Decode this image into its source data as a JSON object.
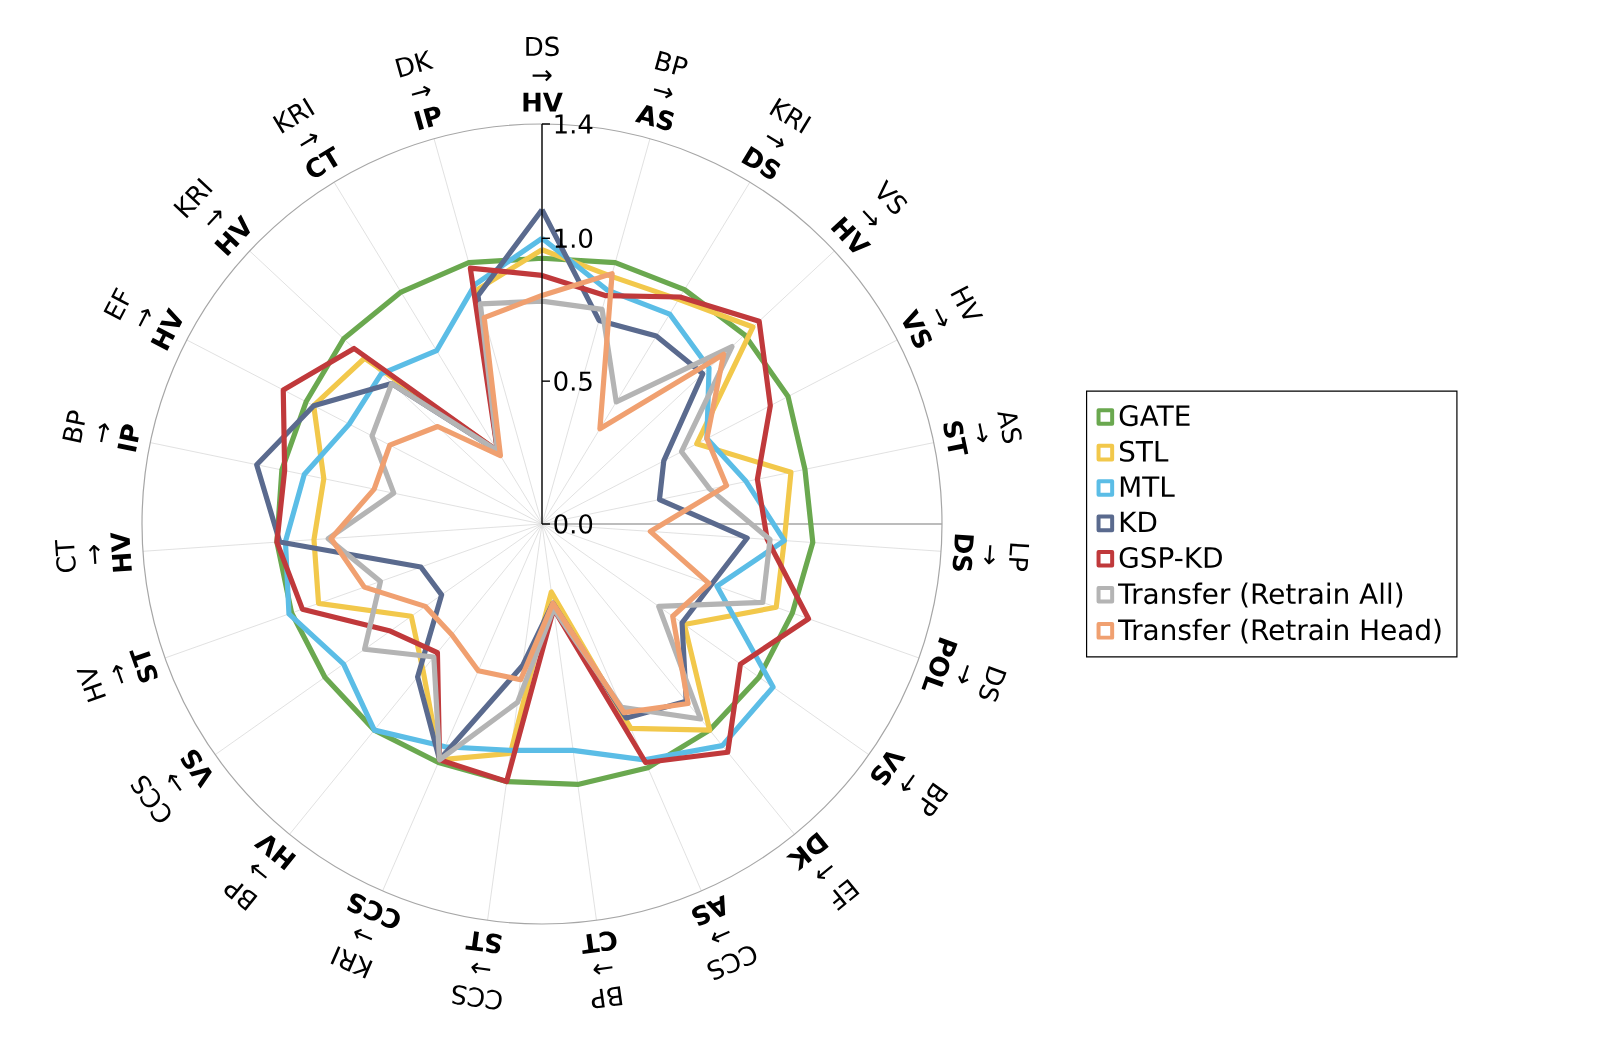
{
  "chart_data": {
    "type": "radar",
    "categories": [
      "DS → **HV**",
      "BP → **AS**",
      "KRI → **DS**",
      "VS → **HV**",
      "HV → **VS**",
      "AS → **ST**",
      "LP → **DS**",
      "DS → **POL**",
      "BP → **VS**",
      "EF → **DK**",
      "CCS → **AS**",
      "BP → **CT**",
      "CCS → **ST**",
      "KRI → **CCS**",
      "BP → **HV**",
      "CCS → **VS**",
      "HV → **ST**",
      "CT → **HV**",
      "BP → **IP**",
      "EF → **HV**",
      "KRI → **HV**",
      "KRI → **CT**",
      "DK → **IP**"
    ],
    "series": [
      {
        "name": "GATE",
        "color": "#6aa84f",
        "values": [
          0.93,
          0.95,
          0.96,
          0.97,
          0.97,
          0.94,
          0.95,
          0.93,
          0.93,
          0.93,
          0.93,
          0.92,
          0.91,
          0.91,
          0.93,
          0.93,
          0.93,
          0.93,
          0.93,
          0.93,
          0.95,
          0.95,
          0.95
        ]
      },
      {
        "name": "STL",
        "color": "#f2c84b",
        "values": [
          0.96,
          0.9,
          0.92,
          1.01,
          0.61,
          0.89,
          0.85,
          0.87,
          0.61,
          0.93,
          0.78,
          0.24,
          0.81,
          0.9,
          0.66,
          0.56,
          0.83,
          0.8,
          0.78,
          0.9,
          0.85,
          0.3,
          0.85
        ]
      },
      {
        "name": "MTL",
        "color": "#5bbde6",
        "values": [
          1.0,
          0.85,
          0.86,
          0.8,
          0.65,
          0.73,
          0.85,
          0.65,
          0.99,
          1.0,
          0.9,
          0.8,
          0.8,
          0.85,
          0.93,
          0.85,
          0.94,
          0.9,
          0.85,
          0.76,
          0.77,
          0.71,
          0.87
        ]
      },
      {
        "name": "KD",
        "color": "#5a6a8e",
        "values": [
          1.1,
          0.74,
          0.77,
          0.77,
          0.48,
          0.42,
          0.72,
          0.63,
          0.6,
          0.8,
          0.74,
          0.28,
          0.5,
          0.9,
          0.69,
          0.43,
          0.45,
          0.92,
          1.02,
          0.9,
          0.72,
          0.3,
          0.83
        ]
      },
      {
        "name": "GSP-KD",
        "color": "#c0393b",
        "values": [
          0.87,
          0.83,
          0.93,
          1.04,
          0.9,
          0.77,
          0.79,
          0.99,
          0.85,
          1.03,
          0.91,
          0.3,
          0.91,
          0.9,
          0.58,
          0.65,
          0.89,
          0.93,
          0.92,
          1.02,
          0.9,
          0.3,
          0.93
        ]
      },
      {
        "name": "Transfer (Retrain All)",
        "color": "#b4b4b4",
        "values": [
          0.78,
          0.78,
          0.5,
          0.91,
          0.55,
          0.6,
          0.8,
          0.82,
          0.5,
          0.88,
          0.7,
          0.3,
          0.63,
          0.9,
          0.6,
          0.76,
          0.6,
          0.75,
          0.53,
          0.67,
          0.72,
          0.3,
          0.8
        ]
      },
      {
        "name": "Transfer (Retrain Head)",
        "color": "#f0a070",
        "values": [
          0.8,
          0.91,
          0.39,
          0.87,
          0.65,
          0.66,
          0.38,
          0.62,
          0.56,
          0.81,
          0.72,
          0.28,
          0.55,
          0.56,
          0.5,
          0.5,
          0.66,
          0.74,
          0.6,
          0.6,
          0.5,
          0.28,
          0.75
        ]
      }
    ],
    "ylim": [
      0,
      1.4
    ],
    "yticks": [
      {
        "value": 0,
        "label": "0.0"
      },
      0.5,
      {
        "value": 1.0,
        "label": "1.0"
      },
      1.4
    ],
    "grid": "x",
    "legend": "right"
  }
}
